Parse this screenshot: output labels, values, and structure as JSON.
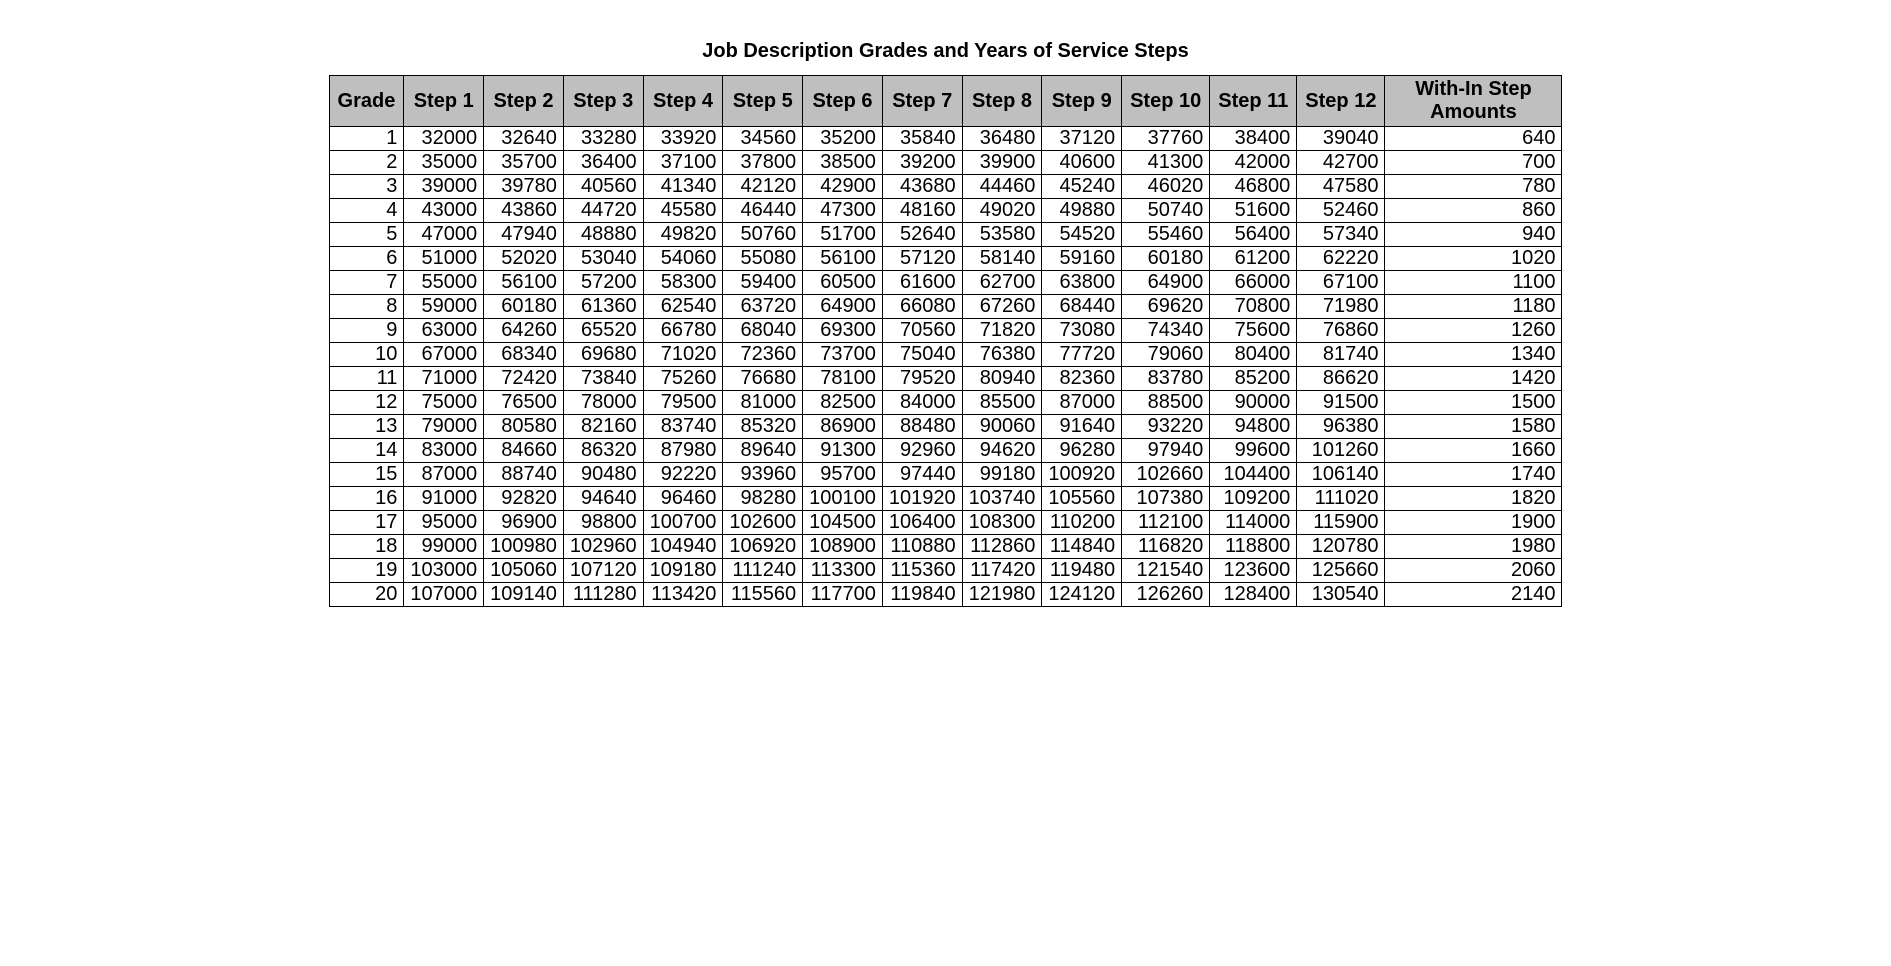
{
  "title": "Job Description Grades and Years of Service Steps",
  "table": {
    "type": "table",
    "background_color": "#ffffff",
    "header_bg": "#bfbfbf",
    "border_color": "#000000",
    "text_color": "#000000",
    "font_family": "Arial",
    "header_fontsize": 20,
    "cell_fontsize": 20,
    "columns": [
      "Grade",
      "Step 1",
      "Step 2",
      "Step 3",
      "Step 4",
      "Step 5",
      "Step 6",
      "Step 7",
      "Step 8",
      "Step 9",
      "Step 10",
      "Step 11",
      "Step 12",
      "With-In Step\nAmounts"
    ],
    "rows": [
      [
        1,
        32000,
        32640,
        33280,
        33920,
        34560,
        35200,
        35840,
        36480,
        37120,
        37760,
        38400,
        39040,
        640
      ],
      [
        2,
        35000,
        35700,
        36400,
        37100,
        37800,
        38500,
        39200,
        39900,
        40600,
        41300,
        42000,
        42700,
        700
      ],
      [
        3,
        39000,
        39780,
        40560,
        41340,
        42120,
        42900,
        43680,
        44460,
        45240,
        46020,
        46800,
        47580,
        780
      ],
      [
        4,
        43000,
        43860,
        44720,
        45580,
        46440,
        47300,
        48160,
        49020,
        49880,
        50740,
        51600,
        52460,
        860
      ],
      [
        5,
        47000,
        47940,
        48880,
        49820,
        50760,
        51700,
        52640,
        53580,
        54520,
        55460,
        56400,
        57340,
        940
      ],
      [
        6,
        51000,
        52020,
        53040,
        54060,
        55080,
        56100,
        57120,
        58140,
        59160,
        60180,
        61200,
        62220,
        1020
      ],
      [
        7,
        55000,
        56100,
        57200,
        58300,
        59400,
        60500,
        61600,
        62700,
        63800,
        64900,
        66000,
        67100,
        1100
      ],
      [
        8,
        59000,
        60180,
        61360,
        62540,
        63720,
        64900,
        66080,
        67260,
        68440,
        69620,
        70800,
        71980,
        1180
      ],
      [
        9,
        63000,
        64260,
        65520,
        66780,
        68040,
        69300,
        70560,
        71820,
        73080,
        74340,
        75600,
        76860,
        1260
      ],
      [
        10,
        67000,
        68340,
        69680,
        71020,
        72360,
        73700,
        75040,
        76380,
        77720,
        79060,
        80400,
        81740,
        1340
      ],
      [
        11,
        71000,
        72420,
        73840,
        75260,
        76680,
        78100,
        79520,
        80940,
        82360,
        83780,
        85200,
        86620,
        1420
      ],
      [
        12,
        75000,
        76500,
        78000,
        79500,
        81000,
        82500,
        84000,
        85500,
        87000,
        88500,
        90000,
        91500,
        1500
      ],
      [
        13,
        79000,
        80580,
        82160,
        83740,
        85320,
        86900,
        88480,
        90060,
        91640,
        93220,
        94800,
        96380,
        1580
      ],
      [
        14,
        83000,
        84660,
        86320,
        87980,
        89640,
        91300,
        92960,
        94620,
        96280,
        97940,
        99600,
        101260,
        1660
      ],
      [
        15,
        87000,
        88740,
        90480,
        92220,
        93960,
        95700,
        97440,
        99180,
        100920,
        102660,
        104400,
        106140,
        1740
      ],
      [
        16,
        91000,
        92820,
        94640,
        96460,
        98280,
        100100,
        101920,
        103740,
        105560,
        107380,
        109200,
        111020,
        1820
      ],
      [
        17,
        95000,
        96900,
        98800,
        100700,
        102600,
        104500,
        106400,
        108300,
        110200,
        112100,
        114000,
        115900,
        1900
      ],
      [
        18,
        99000,
        100980,
        102960,
        104940,
        106920,
        108900,
        110880,
        112860,
        114840,
        116820,
        118800,
        120780,
        1980
      ],
      [
        19,
        103000,
        105060,
        107120,
        109180,
        111240,
        113300,
        115360,
        117420,
        119480,
        121540,
        123600,
        125660,
        2060
      ],
      [
        20,
        107000,
        109140,
        111280,
        113420,
        115560,
        117700,
        119840,
        121980,
        124120,
        126260,
        128400,
        130540,
        2140
      ]
    ]
  }
}
